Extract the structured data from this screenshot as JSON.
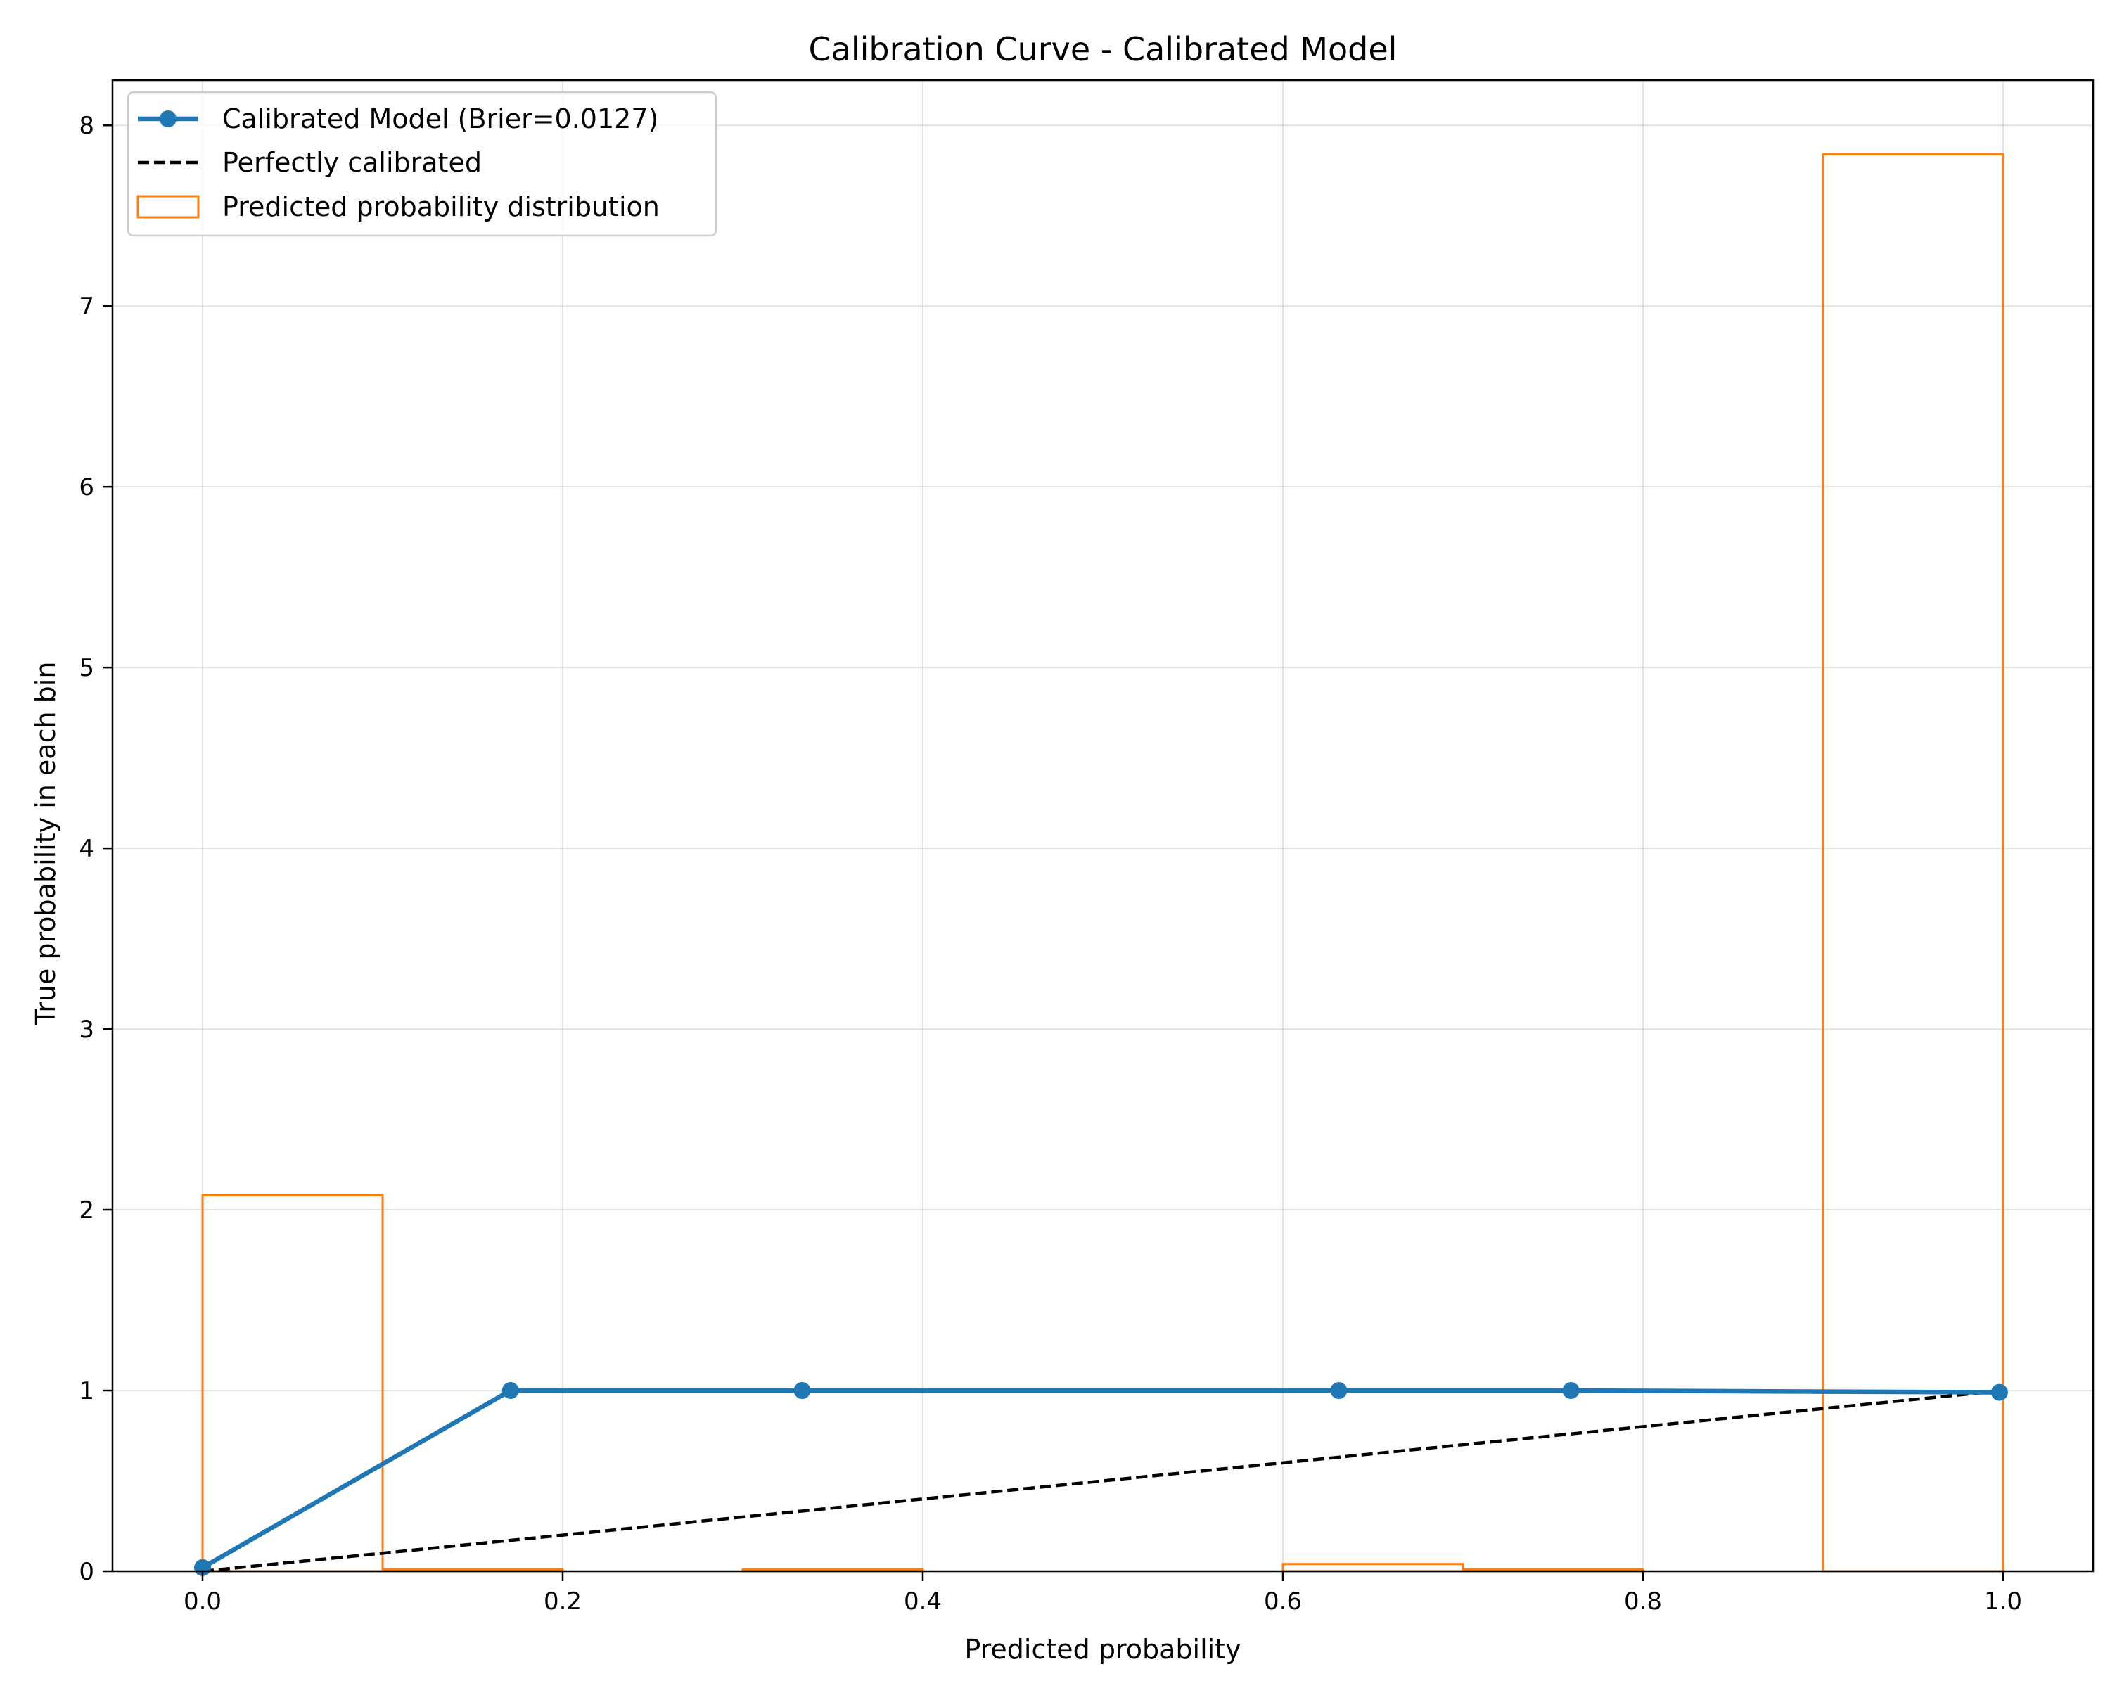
{
  "chart_data": {
    "type": "line",
    "title": "Calibration Curve - Calibrated Model",
    "xlabel": "Predicted probability",
    "ylabel": "True probability in each bin",
    "xlim": [
      -0.05,
      1.05
    ],
    "ylim": [
      0,
      8.25
    ],
    "xticks": [
      "0.0",
      "0.2",
      "0.4",
      "0.6",
      "0.8",
      "1.0"
    ],
    "xtick_values": [
      0.0,
      0.2,
      0.4,
      0.6,
      0.8,
      1.0
    ],
    "yticks": [
      "0",
      "1",
      "2",
      "3",
      "4",
      "5",
      "6",
      "7",
      "8"
    ],
    "ytick_values": [
      0,
      1,
      2,
      3,
      4,
      5,
      6,
      7,
      8
    ],
    "grid": true,
    "legend_position": "top-left",
    "series": [
      {
        "name": "Calibrated Model (Brier=0.0127)",
        "kind": "line-marker",
        "color": "#1f77b4",
        "x": [
          0.0,
          0.171,
          0.333,
          0.631,
          0.76,
          0.998
        ],
        "y": [
          0.02,
          1.0,
          1.0,
          1.0,
          1.0,
          0.99
        ]
      },
      {
        "name": "Perfectly calibrated",
        "kind": "dashed-line",
        "color": "#000000",
        "x": [
          0,
          1
        ],
        "y": [
          0,
          1
        ]
      },
      {
        "name": "Predicted probability distribution",
        "kind": "step-histogram",
        "color": "#ff7f0e",
        "bin_edges": [
          0.0,
          0.1,
          0.2,
          0.3,
          0.4,
          0.5,
          0.6,
          0.7,
          0.8,
          0.9,
          1.0
        ],
        "values": [
          2.08,
          0.01,
          0.0,
          0.01,
          0.0,
          0.0,
          0.04,
          0.01,
          0.0,
          7.84
        ]
      }
    ]
  }
}
